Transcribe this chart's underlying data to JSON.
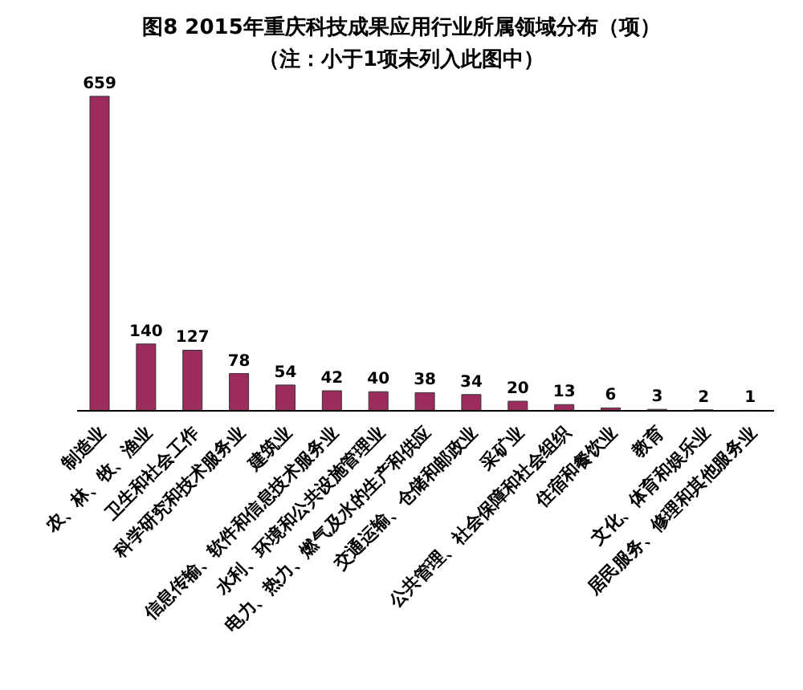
{
  "chart_data": {
    "type": "bar",
    "title": "图8 2015年重庆科技成果应用行业所属领域分布（项）",
    "subtitle": "（注：小于1项未列入此图中）",
    "categories": [
      "制造业",
      "农、林、牧、渔业",
      "卫生和社会工作",
      "科学研究和技术服务业",
      "建筑业",
      "信息传输、软件和信息技术服务业",
      "水利、环境和公共设施管理业",
      "电力、热力、燃气及水的生产和供应",
      "交通运输、仓储和邮政业",
      "采矿业",
      "公共管理、社会保障和社会组织",
      "住宿和餐饮业",
      "教育",
      "文化、体育和娱乐业",
      "居民服务、修理和其他服务业"
    ],
    "values": [
      659,
      140,
      127,
      78,
      54,
      42,
      40,
      38,
      34,
      20,
      13,
      6,
      3,
      2,
      1
    ],
    "color": "#9c2b5e",
    "data_labels": true
  }
}
